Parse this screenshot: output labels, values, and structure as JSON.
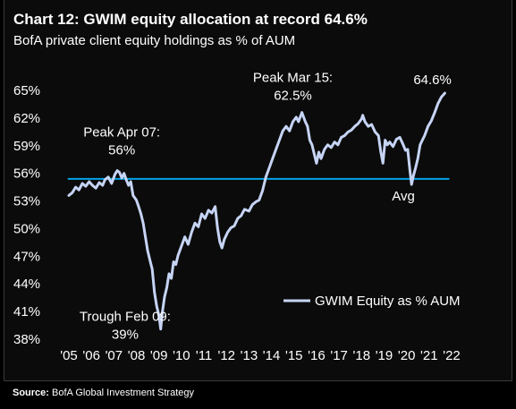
{
  "chart_data": {
    "type": "line",
    "title": "Chart 12: GWIM equity allocation at record 64.6%",
    "subtitle": "BofA private client equity holdings as % of AUM",
    "xlabel": "",
    "ylabel": "",
    "x_tick_labels": [
      "'05",
      "'06",
      "'07",
      "'08",
      "'09",
      "'10",
      "'11",
      "'12",
      "'13",
      "'14",
      "'15",
      "'16",
      "'17",
      "'18",
      "'19",
      "'20",
      "'21",
      "'22"
    ],
    "x_tick_values": [
      2005,
      2006,
      2007,
      2008,
      2009,
      2010,
      2011,
      2012,
      2013,
      2014,
      2015,
      2016,
      2017,
      2018,
      2019,
      2020,
      2021,
      2022
    ],
    "y_tick_labels": [
      "38%",
      "41%",
      "44%",
      "47%",
      "50%",
      "53%",
      "56%",
      "59%",
      "62%",
      "65%"
    ],
    "y_tick_values": [
      38,
      41,
      44,
      47,
      50,
      53,
      56,
      59,
      62,
      65
    ],
    "xlim": [
      2005,
      2022
    ],
    "ylim": [
      38,
      65
    ],
    "grid": false,
    "legend_position": "center-right",
    "series": [
      {
        "name": "GWIM Equity as % AUM",
        "color": "#c6d4f5",
        "x": [
          2005.0,
          2005.15,
          2005.3,
          2005.45,
          2005.6,
          2005.75,
          2005.9,
          2006.05,
          2006.2,
          2006.35,
          2006.5,
          2006.6,
          2006.75,
          2006.9,
          2007.05,
          2007.15,
          2007.25,
          2007.35,
          2007.45,
          2007.55,
          2007.65,
          2007.75,
          2007.85,
          2008.0,
          2008.1,
          2008.2,
          2008.3,
          2008.4,
          2008.5,
          2008.6,
          2008.7,
          2008.8,
          2008.9,
          2009.0,
          2009.08,
          2009.15,
          2009.25,
          2009.35,
          2009.45,
          2009.55,
          2009.65,
          2009.75,
          2009.85,
          2010.0,
          2010.15,
          2010.3,
          2010.45,
          2010.6,
          2010.75,
          2010.9,
          2011.05,
          2011.2,
          2011.35,
          2011.5,
          2011.6,
          2011.7,
          2011.8,
          2011.9,
          2012.05,
          2012.2,
          2012.35,
          2012.5,
          2012.65,
          2012.8,
          2013.0,
          2013.15,
          2013.3,
          2013.45,
          2013.6,
          2013.75,
          2013.9,
          2014.05,
          2014.2,
          2014.35,
          2014.5,
          2014.65,
          2014.8,
          2014.95,
          2015.1,
          2015.2,
          2015.35,
          2015.5,
          2015.6,
          2015.7,
          2015.8,
          2015.9,
          2016.0,
          2016.1,
          2016.2,
          2016.35,
          2016.5,
          2016.65,
          2016.8,
          2016.95,
          2017.1,
          2017.25,
          2017.4,
          2017.55,
          2017.7,
          2017.85,
          2018.0,
          2018.05,
          2018.15,
          2018.3,
          2018.45,
          2018.6,
          2018.75,
          2018.85,
          2018.95,
          2019.05,
          2019.15,
          2019.25,
          2019.4,
          2019.55,
          2019.7,
          2019.85,
          2019.95,
          2020.05,
          2020.15,
          2020.22,
          2020.3,
          2020.4,
          2020.5,
          2020.6,
          2020.7,
          2020.8,
          2020.95,
          2021.1,
          2021.25,
          2021.4,
          2021.55,
          2021.7
        ],
        "values": [
          53.5,
          53.8,
          54.4,
          54.1,
          54.8,
          54.5,
          55.0,
          54.6,
          54.3,
          54.9,
          54.6,
          55.2,
          55.5,
          54.8,
          55.8,
          56.2,
          56.0,
          55.4,
          55.9,
          55.2,
          54.6,
          55.0,
          53.5,
          53.0,
          52.3,
          51.5,
          50.5,
          49.0,
          47.5,
          46.5,
          45.5,
          43.0,
          41.5,
          40.5,
          39.0,
          40.8,
          42.5,
          43.5,
          45.0,
          44.5,
          46.3,
          46.0,
          47.0,
          48.0,
          49.0,
          48.2,
          49.5,
          50.5,
          50.1,
          51.5,
          51.0,
          51.9,
          51.6,
          52.3,
          50.0,
          48.5,
          47.8,
          48.7,
          49.5,
          50.0,
          50.2,
          51.0,
          51.3,
          52.0,
          51.8,
          52.5,
          52.8,
          53.0,
          54.0,
          55.5,
          56.5,
          57.5,
          58.5,
          59.5,
          60.5,
          61.0,
          60.5,
          61.5,
          62.0,
          61.5,
          62.5,
          61.5,
          61.0,
          59.5,
          59.0,
          58.0,
          57.0,
          58.2,
          57.5,
          58.5,
          59.0,
          58.7,
          59.3,
          59.0,
          59.8,
          60.0,
          60.4,
          60.6,
          61.0,
          61.3,
          61.8,
          62.2,
          61.5,
          61.0,
          61.2,
          60.4,
          60.0,
          58.3,
          57.0,
          59.5,
          59.0,
          59.3,
          58.8,
          59.6,
          59.8,
          59.0,
          58.4,
          58.5,
          56.2,
          54.7,
          55.6,
          56.5,
          57.5,
          59.0,
          59.5,
          60.0,
          61.0,
          61.6,
          62.5,
          63.5,
          64.2,
          64.6
        ]
      }
    ],
    "reference_line": {
      "label": "Avg",
      "value": 55.3,
      "color": "#00a3e6"
    },
    "annotations": {
      "peak_apr07": {
        "line1": "Peak Apr 07:",
        "line2": "56%"
      },
      "peak_mar15": {
        "line1": "Peak Mar 15:",
        "line2": "62.5%"
      },
      "trough_feb09": {
        "line1": "Trough Feb 09:",
        "line2": "39%"
      },
      "latest": "64.6%"
    },
    "source": {
      "key": "Source:",
      "text": "BofA Global Investment Strategy"
    }
  }
}
